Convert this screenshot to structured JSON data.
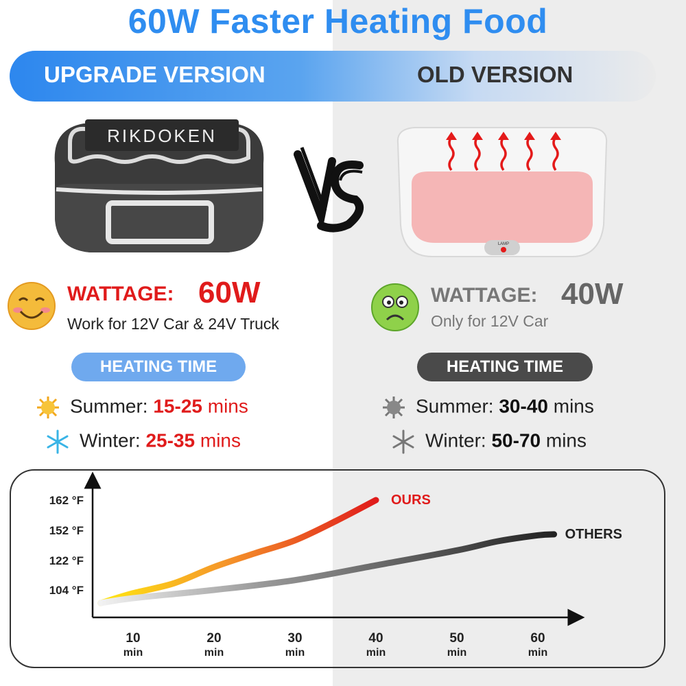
{
  "headline": "60W Faster Heating Food",
  "banner": {
    "upgrade": "UPGRADE VERSION",
    "old": "OLD VERSION"
  },
  "brand": "RIKDOKEN",
  "vs_mark": "VS",
  "product_old": {
    "lamp_label": "LAMP"
  },
  "upgrade": {
    "wattage_label": "WATTAGE:",
    "wattage_value": "60W",
    "compat": "Work for 12V Car & 24V Truck",
    "heating_time_label": "HEATING TIME",
    "summer_label": "Summer:",
    "summer_value": "15-25",
    "winter_label": "Winter:",
    "winter_value": "25-35",
    "unit": "mins"
  },
  "old": {
    "wattage_label": "WATTAGE:",
    "wattage_value": "40W",
    "compat": "Only for 12V Car",
    "heating_time_label": "HEATING TIME",
    "summer_label": "Summer:",
    "summer_value": "30-40",
    "winter_label": "Winter:",
    "winter_value": "50-70",
    "unit": "mins"
  },
  "colors": {
    "accent_blue": "#2f8df0",
    "ours_red": "#e01b1b",
    "old_gray": "#666666",
    "pill_blue": "#6fa9ee",
    "pill_dark": "#4a4a4a"
  },
  "icons": {
    "happy": "smiley-face-icon",
    "sad": "sad-face-icon",
    "summer": "sun-icon",
    "winter": "snowflake-icon"
  },
  "chart_data": {
    "type": "line",
    "x_ticks": [
      "10",
      "20",
      "30",
      "40",
      "50",
      "60"
    ],
    "x_tick_unit": "min",
    "y_ticks": [
      "104 °F",
      "122 °F",
      "152 °F",
      "162 °F"
    ],
    "series": [
      {
        "name": "OURS",
        "color": "#e01b1b",
        "points": [
          [
            6,
            96
          ],
          [
            10,
            102
          ],
          [
            15,
            108
          ],
          [
            20,
            118
          ],
          [
            25,
            129
          ],
          [
            30,
            142
          ],
          [
            35,
            155
          ],
          [
            40,
            162
          ]
        ]
      },
      {
        "name": "OTHERS",
        "color": "#222222",
        "points": [
          [
            6,
            96
          ],
          [
            10,
            99
          ],
          [
            20,
            104
          ],
          [
            30,
            110
          ],
          [
            40,
            119
          ],
          [
            50,
            132
          ],
          [
            55,
            141
          ],
          [
            60,
            147
          ],
          [
            62,
            148
          ]
        ]
      }
    ]
  }
}
